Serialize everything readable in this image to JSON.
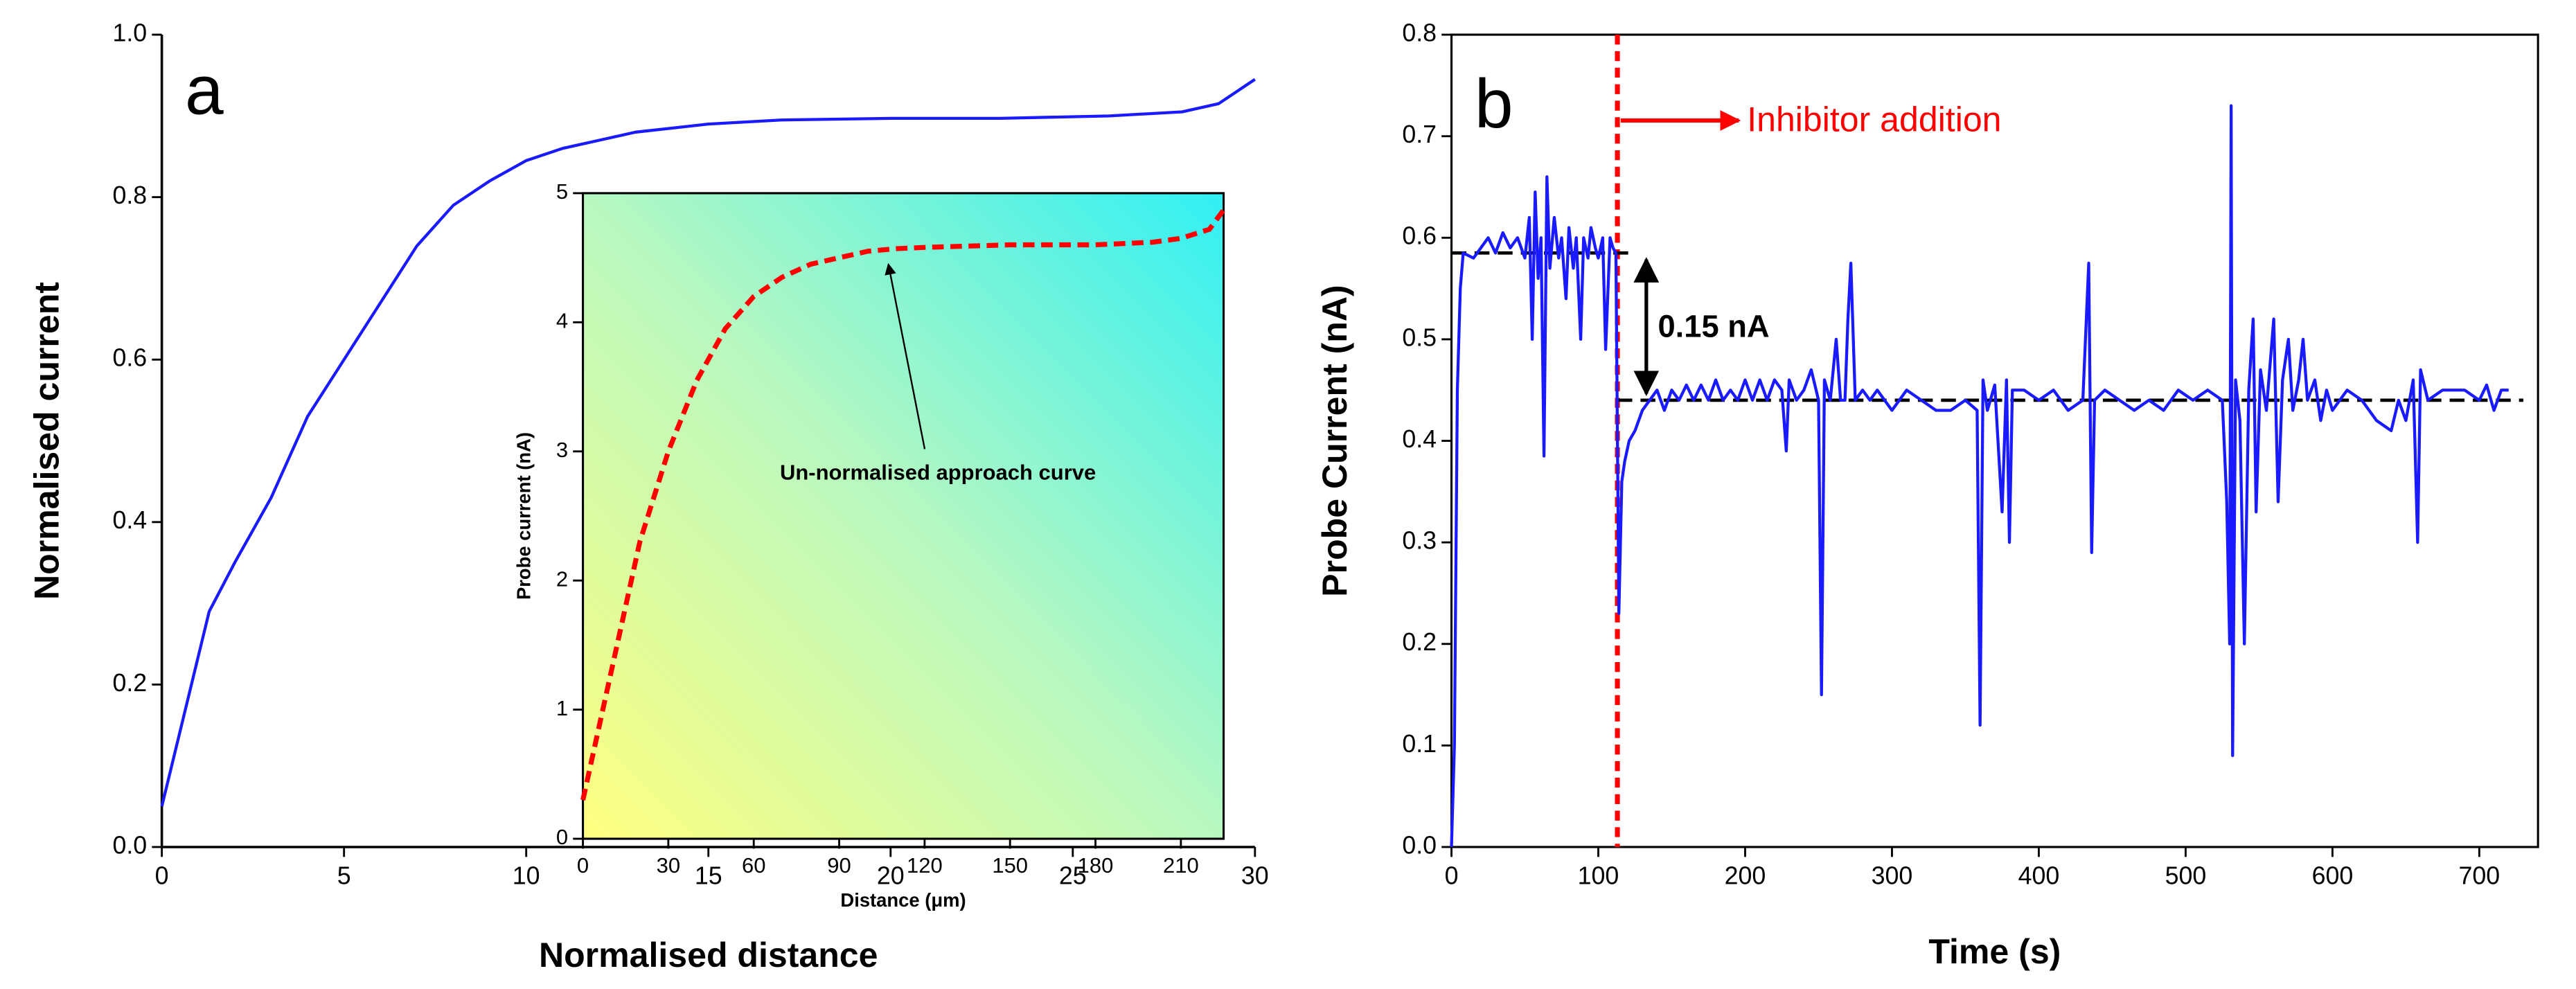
{
  "chart_data": [
    {
      "type": "line",
      "panel_label": "a",
      "xlabel": "Normalised distance",
      "ylabel": "Normalised current",
      "xlim": [
        0,
        30
      ],
      "ylim": [
        0,
        1
      ],
      "xticks": [
        0,
        5,
        10,
        15,
        20,
        25,
        30
      ],
      "yticks": [
        {
          "value": 0,
          "label": "0.0"
        },
        {
          "value": 0.2,
          "label": "0.2"
        },
        {
          "value": 0.4,
          "label": "0.4"
        },
        {
          "value": 0.6,
          "label": "0.6"
        },
        {
          "value": 0.8,
          "label": "0.8"
        },
        {
          "value": 1,
          "label": "1.0"
        }
      ],
      "x": [
        0,
        1.3,
        2,
        3,
        4,
        5,
        6,
        7,
        8,
        9,
        10,
        11,
        12,
        13,
        14,
        15,
        17,
        20,
        23,
        26,
        28,
        29,
        30
      ],
      "series": [
        {
          "color": "#1a1aff",
          "values": [
            0.05,
            0.29,
            0.35,
            0.43,
            0.53,
            0.6,
            0.67,
            0.74,
            0.79,
            0.82,
            0.845,
            0.86,
            0.87,
            0.88,
            0.885,
            0.89,
            0.895,
            0.897,
            0.897,
            0.9,
            0.905,
            0.915,
            0.945
          ]
        }
      ]
    },
    {
      "type": "line",
      "xlabel": "Distance (μm)",
      "ylabel": "Probe current (nA)",
      "annotation": "Un-normalised approach curve",
      "xlim": [
        0,
        225
      ],
      "ylim": [
        0,
        5
      ],
      "xticks": [
        0,
        30,
        60,
        90,
        120,
        150,
        180,
        210
      ],
      "yticks": [
        0,
        1,
        2,
        3,
        4,
        5
      ],
      "x": [
        0,
        5,
        10,
        15,
        20,
        30,
        40,
        50,
        60,
        70,
        80,
        90,
        100,
        110,
        120,
        150,
        180,
        200,
        210,
        220,
        225
      ],
      "series": [
        {
          "color": "#ff0000",
          "dashed": true,
          "values": [
            0.3,
            0.8,
            1.3,
            1.8,
            2.3,
            3.0,
            3.55,
            3.95,
            4.2,
            4.35,
            4.45,
            4.5,
            4.55,
            4.57,
            4.58,
            4.6,
            4.6,
            4.62,
            4.65,
            4.72,
            4.87
          ]
        }
      ]
    },
    {
      "type": "line",
      "panel_label": "b",
      "xlabel": "Time (s)",
      "ylabel": "Probe Current (nA)",
      "annotations": [
        "Inhibitor addition",
        "0.15 nA"
      ],
      "xlim": [
        0,
        740
      ],
      "ylim": [
        0,
        0.8
      ],
      "xticks": [
        0,
        100,
        200,
        300,
        400,
        500,
        600,
        700
      ],
      "yticks": [
        {
          "value": 0,
          "label": "0.0"
        },
        {
          "value": 0.1,
          "label": "0.1"
        },
        {
          "value": 0.2,
          "label": "0.2"
        },
        {
          "value": 0.3,
          "label": "0.3"
        },
        {
          "value": 0.4,
          "label": "0.4"
        },
        {
          "value": 0.5,
          "label": "0.5"
        },
        {
          "value": 0.6,
          "label": "0.6"
        },
        {
          "value": 0.7,
          "label": "0.7"
        },
        {
          "value": 0.8,
          "label": "0.8"
        }
      ],
      "reference_lines": [
        {
          "axis": "x",
          "value": 113,
          "color": "#ff0000"
        },
        {
          "axis": "y",
          "value": 0.585,
          "from": 0,
          "to": 125,
          "color": "#000000"
        },
        {
          "axis": "y",
          "value": 0.44,
          "from": 113,
          "to": 730,
          "color": "#000000"
        }
      ],
      "x": [
        0,
        2,
        4,
        6,
        8,
        15,
        20,
        25,
        30,
        35,
        40,
        45,
        50,
        53,
        55,
        57,
        59,
        61,
        63,
        65,
        67,
        70,
        73,
        75,
        78,
        80,
        83,
        85,
        88,
        90,
        93,
        95,
        98,
        100,
        103,
        105,
        108,
        110,
        112,
        114,
        116,
        118,
        121,
        125,
        130,
        135,
        140,
        145,
        150,
        155,
        160,
        165,
        170,
        175,
        180,
        185,
        190,
        195,
        200,
        205,
        210,
        215,
        220,
        225,
        228,
        230,
        235,
        240,
        245,
        250,
        252,
        254,
        258,
        262,
        265,
        268,
        270,
        272,
        275,
        280,
        285,
        290,
        300,
        310,
        320,
        330,
        340,
        350,
        358,
        360,
        362,
        365,
        370,
        375,
        378,
        380,
        382,
        390,
        400,
        410,
        420,
        430,
        434,
        436,
        438,
        445,
        455,
        465,
        475,
        485,
        495,
        505,
        515,
        525,
        528,
        530,
        531,
        532,
        534,
        537,
        540,
        543,
        546,
        548,
        551,
        555,
        560,
        563,
        566,
        570,
        573,
        577,
        580,
        583,
        588,
        592,
        596,
        600,
        610,
        620,
        630,
        640,
        645,
        650,
        655,
        658,
        660,
        665,
        675,
        690,
        700,
        705,
        710,
        715,
        720
      ],
      "series": [
        {
          "color": "#1a1aff",
          "values": [
            0,
            0.1,
            0.45,
            0.55,
            0.585,
            0.58,
            0.59,
            0.6,
            0.585,
            0.605,
            0.59,
            0.6,
            0.58,
            0.62,
            0.5,
            0.645,
            0.56,
            0.6,
            0.385,
            0.66,
            0.57,
            0.62,
            0.58,
            0.6,
            0.54,
            0.61,
            0.57,
            0.6,
            0.5,
            0.6,
            0.58,
            0.61,
            0.59,
            0.58,
            0.6,
            0.49,
            0.6,
            0.59,
            0.585,
            0.23,
            0.36,
            0.38,
            0.4,
            0.41,
            0.43,
            0.44,
            0.45,
            0.43,
            0.45,
            0.44,
            0.455,
            0.44,
            0.455,
            0.44,
            0.46,
            0.44,
            0.45,
            0.44,
            0.46,
            0.44,
            0.46,
            0.44,
            0.46,
            0.45,
            0.39,
            0.46,
            0.44,
            0.45,
            0.47,
            0.44,
            0.15,
            0.46,
            0.44,
            0.5,
            0.44,
            0.44,
            0.52,
            0.575,
            0.44,
            0.45,
            0.44,
            0.45,
            0.43,
            0.45,
            0.44,
            0.43,
            0.43,
            0.44,
            0.43,
            0.12,
            0.46,
            0.43,
            0.455,
            0.33,
            0.46,
            0.3,
            0.45,
            0.45,
            0.44,
            0.45,
            0.43,
            0.44,
            0.575,
            0.29,
            0.44,
            0.45,
            0.44,
            0.43,
            0.44,
            0.43,
            0.45,
            0.44,
            0.45,
            0.44,
            0.34,
            0.2,
            0.73,
            0.09,
            0.46,
            0.42,
            0.2,
            0.45,
            0.52,
            0.33,
            0.47,
            0.43,
            0.52,
            0.34,
            0.46,
            0.5,
            0.43,
            0.46,
            0.5,
            0.44,
            0.46,
            0.42,
            0.45,
            0.43,
            0.45,
            0.44,
            0.42,
            0.41,
            0.44,
            0.42,
            0.46,
            0.3,
            0.47,
            0.44,
            0.45,
            0.45,
            0.44,
            0.455,
            0.43,
            0.45,
            0.45
          ]
        }
      ]
    }
  ]
}
